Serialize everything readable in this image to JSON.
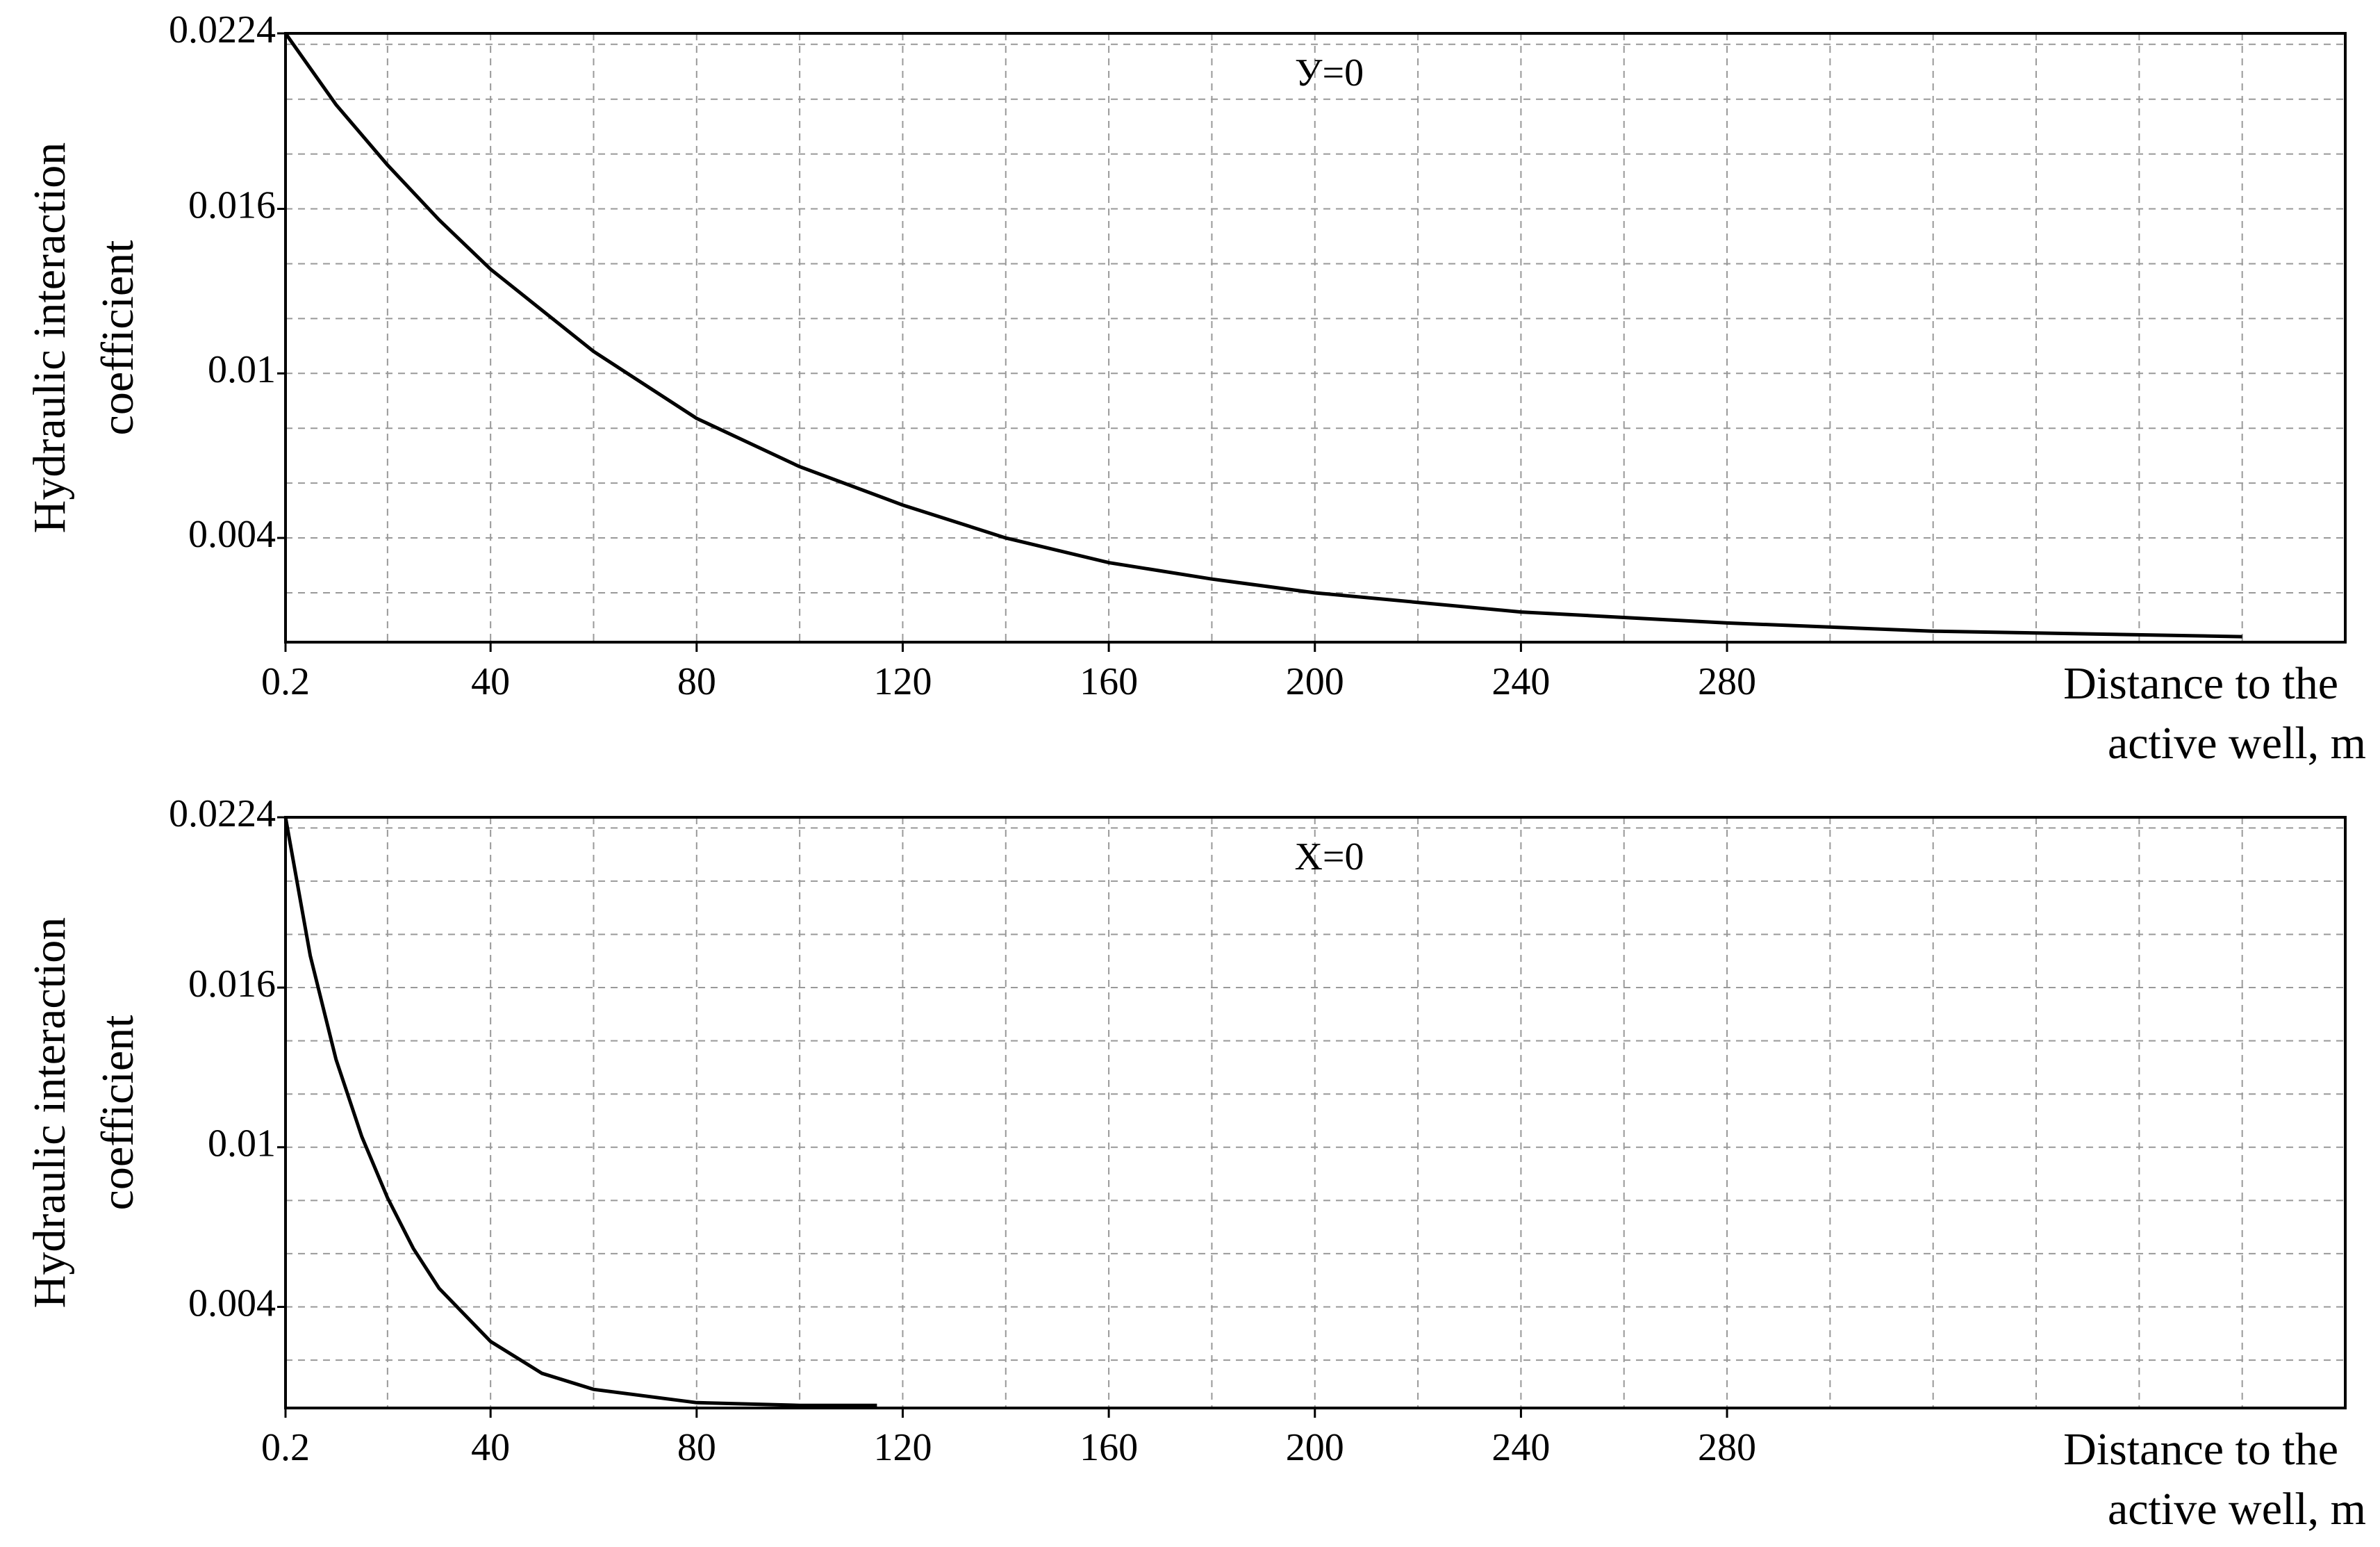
{
  "chart_data": [
    {
      "type": "line",
      "annotation": "У=0",
      "xlabel": [
        "Distance to the",
        "active well, m"
      ],
      "ylabel": [
        "Hydraulic interaction",
        "coefficient"
      ],
      "x": [
        0.2,
        10,
        20,
        30,
        40,
        60,
        80,
        100,
        120,
        140,
        160,
        180,
        200,
        240,
        280,
        320,
        380
      ],
      "series": [
        {
          "color": "#000000",
          "values": [
            0.0224,
            0.0198,
            0.0176,
            0.0156,
            0.0138,
            0.0108,
            0.00836,
            0.0066,
            0.0052,
            0.004,
            0.0031,
            0.0025,
            0.002,
            0.0013,
            0.0009,
            0.0006,
            0.0004
          ]
        }
      ],
      "xlim": [
        0.2,
        400
      ],
      "xticks": [
        0.2,
        40,
        80,
        120,
        160,
        200,
        240,
        280
      ],
      "ylim": [
        0.0002,
        0.0224
      ],
      "yticks": [
        0.0224,
        0.016,
        0.01,
        0.004
      ],
      "xgrid": [
        20,
        40,
        60,
        80,
        100,
        120,
        140,
        160,
        180,
        200,
        220,
        240,
        260,
        280,
        300,
        320,
        340,
        360,
        380
      ],
      "ygrid": [
        0.002,
        0.004,
        0.006,
        0.008,
        0.01,
        0.012,
        0.014,
        0.016,
        0.018,
        0.02,
        0.022
      ],
      "grid": true
    },
    {
      "type": "line",
      "annotation": "X=0",
      "xlabel": [
        "Distance to the",
        "active well, m"
      ],
      "ylabel": [
        "Hydraulic interaction",
        "coefficient"
      ],
      "x": [
        0.2,
        5,
        10,
        15,
        20,
        25,
        30,
        40,
        50,
        60,
        80,
        100,
        115
      ],
      "series": [
        {
          "color": "#000000",
          "values": [
            0.0224,
            0.0172,
            0.0133,
            0.0104,
            0.0081,
            0.0062,
            0.0047,
            0.0027,
            0.0015,
            0.0009,
            0.0004,
            0.0003,
            0.0003
          ]
        }
      ],
      "xlim": [
        0.2,
        400
      ],
      "xticks": [
        0.2,
        40,
        80,
        120,
        160,
        200,
        240,
        280
      ],
      "ylim": [
        0.0002,
        0.0224
      ],
      "yticks": [
        0.0224,
        0.016,
        0.01,
        0.004
      ],
      "xgrid": [
        20,
        40,
        60,
        80,
        100,
        120,
        140,
        160,
        180,
        200,
        220,
        240,
        260,
        280,
        300,
        320,
        340,
        360,
        380
      ],
      "ygrid": [
        0.002,
        0.004,
        0.006,
        0.008,
        0.01,
        0.012,
        0.014,
        0.016,
        0.018,
        0.02,
        0.022
      ],
      "grid": true
    }
  ]
}
